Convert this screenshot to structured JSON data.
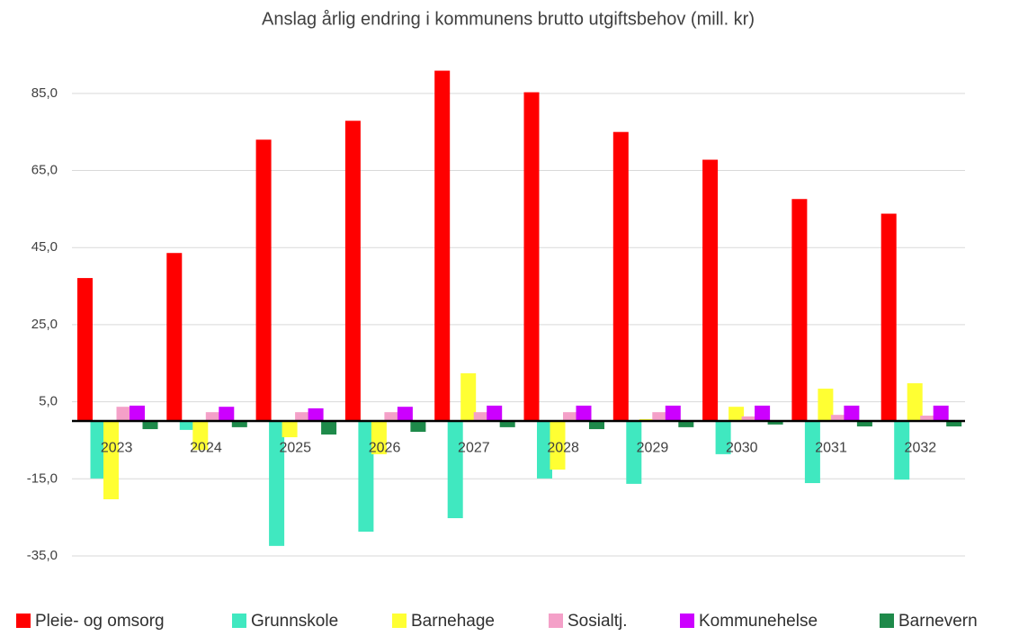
{
  "chart_data": {
    "type": "bar",
    "title": "Anslag årlig endring i kommunens brutto utgiftsbehov (mill. kr)",
    "categories": [
      "2023",
      "2024",
      "2025",
      "2026",
      "2027",
      "2028",
      "2029",
      "2030",
      "2031",
      "2032"
    ],
    "series": [
      {
        "name": "Pleie- og omsorg",
        "color": "#ff0000",
        "values": [
          37.1,
          43.6,
          73.0,
          77.9,
          90.9,
          85.3,
          75.0,
          67.8,
          57.6,
          53.8
        ]
      },
      {
        "name": "Grunnskole",
        "color": "#40e8c0",
        "values": [
          -14.9,
          -2.3,
          -32.4,
          -28.7,
          -25.2,
          -14.9,
          -16.3,
          -8.6,
          -16.1,
          -15.2
        ]
      },
      {
        "name": "Barnehage",
        "color": "#ffff33",
        "values": [
          -20.3,
          -7.5,
          -4.2,
          -8.6,
          12.4,
          -12.6,
          0.5,
          3.7,
          8.4,
          9.8
        ]
      },
      {
        "name": "Sosialtj.",
        "color": "#f4a0c8",
        "values": [
          3.7,
          2.3,
          2.3,
          2.3,
          2.3,
          2.3,
          2.3,
          1.2,
          1.6,
          1.4
        ]
      },
      {
        "name": "Kommunehelse",
        "color": "#cc00ff",
        "values": [
          4.0,
          3.7,
          3.3,
          3.7,
          4.0,
          4.0,
          4.0,
          4.0,
          4.0,
          4.0
        ]
      },
      {
        "name": "Barnevern",
        "color": "#1e8a4a",
        "values": [
          -2.1,
          -1.6,
          -3.5,
          -2.8,
          -1.6,
          -2.1,
          -1.6,
          -0.9,
          -1.4,
          -1.4
        ]
      }
    ],
    "ylim": [
      -35,
      95
    ],
    "yticks": [
      {
        "value": -35,
        "label": "-35,0"
      },
      {
        "value": -15,
        "label": "-15,0"
      },
      {
        "value": 5,
        "label": "5,0"
      },
      {
        "value": 25,
        "label": "25,0"
      },
      {
        "value": 45,
        "label": "45,0"
      },
      {
        "value": 65,
        "label": "65,0"
      },
      {
        "value": 85,
        "label": "85,0"
      }
    ],
    "grid": true,
    "legend": "bottom"
  }
}
